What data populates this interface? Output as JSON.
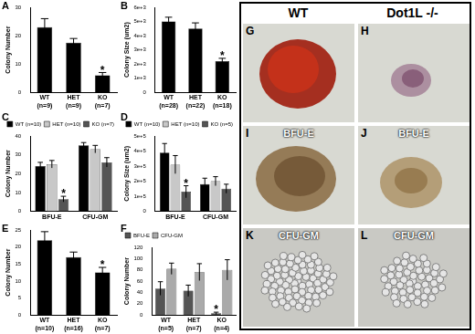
{
  "chart_data": [
    {
      "panel": "A",
      "type": "bar",
      "y_label": "Colony Number",
      "grid": false,
      "categories": [
        "WT (n=9)",
        "HET (n=9)",
        "KO (n=7)"
      ],
      "values": [
        23,
        17.5,
        6
      ],
      "errors": [
        3,
        1.5,
        1
      ],
      "color": "#000000",
      "ylim": [
        0,
        30
      ],
      "yticks": [
        0,
        10,
        20,
        30
      ],
      "annotations": [
        {
          "text": "*",
          "category": "KO (n=7)"
        }
      ]
    },
    {
      "panel": "B",
      "type": "bar",
      "y_label": "Colony Size (um2)",
      "grid": false,
      "categories": [
        "WT (n=28)",
        "HET (n=22)",
        "KO (n=18)"
      ],
      "values": [
        5000,
        4500,
        2200
      ],
      "errors": [
        300,
        400,
        200
      ],
      "color": "#000000",
      "ylim": [
        0,
        6000
      ],
      "yticks": [
        0,
        {
          "value": 1000,
          "label": "1e+3"
        },
        {
          "value": 2000,
          "label": "2e+3"
        },
        {
          "value": 3000,
          "label": "3e+3"
        },
        {
          "value": 4000,
          "label": "4e+3"
        },
        {
          "value": 5000,
          "label": "5e+3"
        },
        {
          "value": 6000,
          "label": "6e+3"
        }
      ],
      "annotations": [
        {
          "text": "*",
          "category": "KO (n=18)"
        }
      ]
    },
    {
      "panel": "C",
      "type": "bar",
      "y_label": "Colony Number",
      "grid": false,
      "legend": "upper right",
      "categories": [
        "BFU-E",
        "CFU-GM"
      ],
      "series": [
        {
          "name": "WT (n=10)",
          "color": "#000000",
          "values": [
            24,
            35
          ],
          "errors": [
            2,
            1.5
          ]
        },
        {
          "name": "HET (n=10)",
          "color": "#c8c8c8",
          "values": [
            25,
            33
          ],
          "errors": [
            2,
            2
          ]
        },
        {
          "name": "KO (n=7)",
          "color": "#555555",
          "values": [
            6.5,
            26
          ],
          "errors": [
            1.5,
            2.5
          ]
        }
      ],
      "ylim": [
        0,
        40
      ],
      "yticks": [
        0,
        10,
        20,
        30,
        40
      ],
      "annotations": [
        {
          "text": "*",
          "category": "BFU-E",
          "series": "KO (n=7)"
        }
      ]
    },
    {
      "panel": "D",
      "type": "bar",
      "y_label": "Colony Size (um2)",
      "grid": false,
      "legend": "upper right",
      "categories": [
        "BFU-E",
        "CFU-GM"
      ],
      "series": [
        {
          "name": "WT (n=10)",
          "color": "#000000",
          "values": [
            390000,
            180000
          ],
          "errors": [
            60000,
            40000
          ]
        },
        {
          "name": "HET (n=10)",
          "color": "#c8c8c8",
          "values": [
            310000,
            200000
          ],
          "errors": [
            60000,
            30000
          ]
        },
        {
          "name": "KO (n=5)",
          "color": "#555555",
          "values": [
            130000,
            150000
          ],
          "errors": [
            40000,
            30000
          ]
        }
      ],
      "ylim": [
        0,
        500000
      ],
      "yticks": [
        0,
        {
          "value": 100000,
          "label": "1e+5"
        },
        {
          "value": 200000,
          "label": "2e+5"
        },
        {
          "value": 300000,
          "label": "3e+5"
        },
        {
          "value": 400000,
          "label": "4e+5"
        },
        {
          "value": 500000,
          "label": "5e+5"
        }
      ],
      "annotations": [
        {
          "text": "*",
          "category": "BFU-E",
          "series": "KO (n=5)"
        }
      ]
    },
    {
      "panel": "E",
      "type": "bar",
      "y_label": "Colony Number",
      "grid": false,
      "categories": [
        "WT (n=10)",
        "HET (n=16)",
        "KO (n=7)"
      ],
      "values": [
        22,
        17,
        12.5
      ],
      "errors": [
        2.5,
        1.5,
        1.5
      ],
      "color": "#000000",
      "ylim": [
        0,
        25
      ],
      "yticks": [
        0,
        5,
        10,
        15,
        20,
        25
      ],
      "annotations": [
        {
          "text": "*",
          "category": "KO (n=7)"
        }
      ]
    },
    {
      "panel": "F",
      "type": "bar",
      "y_label": "Colony Number",
      "grid": false,
      "legend": "upper left",
      "categories": [
        "WT (n=5)",
        "HET (n=7)",
        "KO (n=4)"
      ],
      "series": [
        {
          "name": "BFU-E",
          "color": "#555555",
          "values": [
            47,
            43,
            3
          ],
          "errors": [
            12,
            10,
            2
          ]
        },
        {
          "name": "CFU-GM",
          "color": "#aaaaaa",
          "values": [
            82,
            76,
            80
          ],
          "errors": [
            10,
            15,
            18
          ]
        }
      ],
      "ylim": [
        0,
        120
      ],
      "yticks": [
        0,
        20,
        40,
        60,
        80,
        100,
        120
      ],
      "annotations": [
        {
          "text": "*",
          "category": "KO (n=4)",
          "series": "BFU-E"
        }
      ]
    }
  ],
  "images": {
    "columns": [
      "WT",
      "Dot1L -/-"
    ],
    "panels": [
      {
        "letter": "G"
      },
      {
        "letter": "H"
      },
      {
        "letter": "I",
        "label": "BFU-E"
      },
      {
        "letter": "J",
        "label": "BFU-E"
      },
      {
        "letter": "K",
        "label": "CFU-GM"
      },
      {
        "letter": "L",
        "label": "CFU-GM"
      }
    ]
  }
}
